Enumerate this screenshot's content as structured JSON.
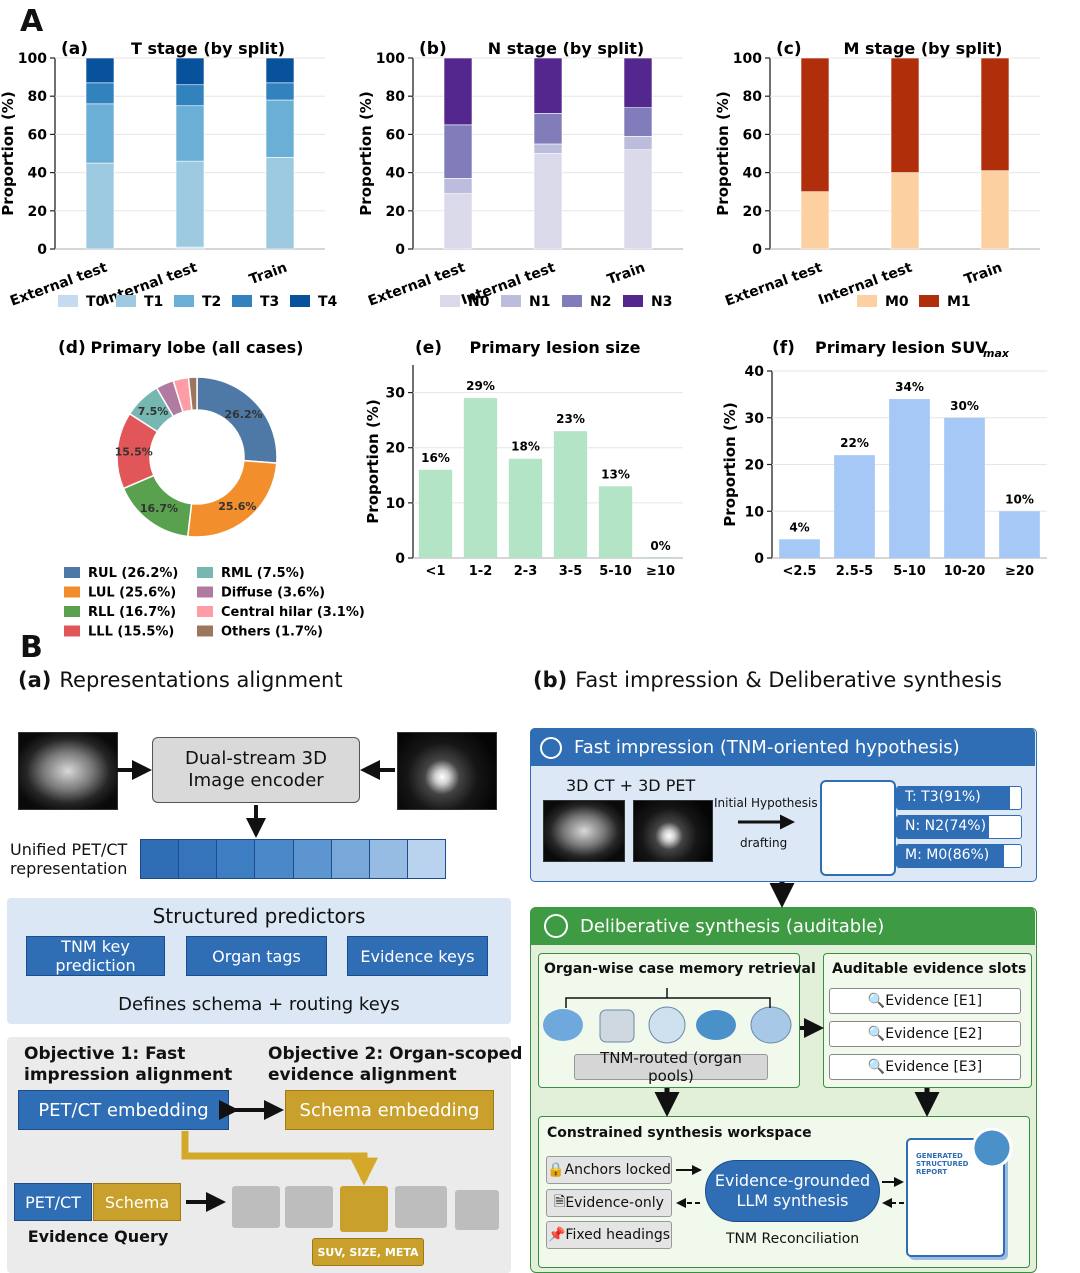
{
  "panel_A_letter": "A",
  "panel_B_letter": "B",
  "legend_A": {
    "t": [
      "T0",
      "T1",
      "T2",
      "T3",
      "T4"
    ],
    "n": [
      "N0",
      "N1",
      "N2",
      "N3"
    ],
    "m": [
      "M0",
      "M1"
    ]
  },
  "colors": {
    "t": [
      "#c6dbef",
      "#9ecae1",
      "#6baed6",
      "#3182bd",
      "#08519c"
    ],
    "n": [
      "#dadaeb",
      "#bcbddc",
      "#807dba",
      "#54278f"
    ],
    "m": [
      "#fdd0a2",
      "#b02f0a"
    ],
    "lobe": [
      "#4e79a7",
      "#f28e2b",
      "#59a14f",
      "#e15759",
      "#76b7b2",
      "#b07aa1",
      "#ff9da7",
      "#9c755f"
    ],
    "size_bar": "#b4e4c6",
    "suv_bar": "#a6c8f7",
    "blue": "#2f6db5",
    "gold": "#c9a02b"
  },
  "chart_data": [
    {
      "id": "a",
      "type": "bar",
      "stacked": true,
      "panel_label": "(a)",
      "title": "T stage (by split)",
      "ylabel": "Proportion (%)",
      "ylim": [
        0,
        100
      ],
      "yticks": [
        "0",
        "20",
        "40",
        "60",
        "80",
        "100"
      ],
      "categories": [
        "External test",
        "Internal test",
        "Train"
      ],
      "series": [
        {
          "name": "T0",
          "values": [
            0,
            1,
            0
          ]
        },
        {
          "name": "T1",
          "values": [
            45,
            45,
            48
          ]
        },
        {
          "name": "T2",
          "values": [
            31,
            29,
            30
          ]
        },
        {
          "name": "T3",
          "values": [
            11,
            11,
            9
          ]
        },
        {
          "name": "T4",
          "values": [
            13,
            14,
            13
          ]
        }
      ]
    },
    {
      "id": "b",
      "type": "bar",
      "stacked": true,
      "panel_label": "(b)",
      "title": "N stage (by split)",
      "ylabel": "Proportion (%)",
      "ylim": [
        0,
        100
      ],
      "yticks": [
        "0",
        "20",
        "40",
        "60",
        "80",
        "100"
      ],
      "categories": [
        "External test",
        "Internal test",
        "Train"
      ],
      "series": [
        {
          "name": "N0",
          "values": [
            29,
            50,
            52
          ]
        },
        {
          "name": "N1",
          "values": [
            8,
            5,
            7
          ]
        },
        {
          "name": "N2",
          "values": [
            28,
            16,
            15
          ]
        },
        {
          "name": "N3",
          "values": [
            35,
            29,
            26
          ]
        }
      ]
    },
    {
      "id": "c",
      "type": "bar",
      "stacked": true,
      "panel_label": "(c)",
      "title": "M stage (by split)",
      "ylabel": "Proportion (%)",
      "ylim": [
        0,
        100
      ],
      "yticks": [
        "0",
        "20",
        "40",
        "60",
        "80",
        "100"
      ],
      "categories": [
        "External test",
        "Internal test",
        "Train"
      ],
      "series": [
        {
          "name": "M0",
          "values": [
            30,
            40,
            41
          ]
        },
        {
          "name": "M1",
          "values": [
            70,
            60,
            59
          ]
        }
      ]
    },
    {
      "id": "d",
      "type": "pie",
      "donut": true,
      "panel_label": "(d)",
      "title": "Primary lobe (all cases)",
      "categories": [
        "RUL",
        "LUL",
        "RLL",
        "LLL",
        "RML",
        "Diffuse",
        "Central hilar",
        "Others"
      ],
      "values": [
        26.2,
        25.6,
        16.7,
        15.5,
        7.5,
        3.6,
        3.1,
        1.7
      ],
      "labels": [
        "26.2%",
        "25.6%",
        "16.7%",
        "15.5%",
        "7.5%",
        "",
        "",
        ""
      ],
      "legend": [
        "RUL (26.2%)",
        "LUL (25.6%)",
        "RLL (16.7%)",
        "LLL (15.5%)",
        "RML (7.5%)",
        "Diffuse (3.6%)",
        "Central hilar (3.1%)",
        "Others (1.7%)"
      ]
    },
    {
      "id": "e",
      "type": "bar",
      "panel_label": "(e)",
      "title": "Primary lesion size",
      "ylabel": "Proportion (%)",
      "ylim": [
        0,
        35
      ],
      "yticks": [
        "0",
        "10",
        "20",
        "30"
      ],
      "categories": [
        "<1",
        "1-2",
        "2-3",
        "3-5",
        "5-10",
        "≥10"
      ],
      "values": [
        16,
        29,
        18,
        23,
        13,
        0
      ],
      "labels": [
        "16%",
        "29%",
        "18%",
        "23%",
        "13%",
        "0%"
      ]
    },
    {
      "id": "f",
      "type": "bar",
      "panel_label": "(f)",
      "title": "Primary lesion SUV",
      "title_sub": "max",
      "ylabel": "Proportion (%)",
      "ylim": [
        0,
        40
      ],
      "yticks": [
        "0",
        "10",
        "20",
        "30",
        "40"
      ],
      "categories": [
        "<2.5",
        "2.5-5",
        "5-10",
        "10-20",
        "≥20"
      ],
      "values": [
        4,
        22,
        34,
        30,
        10
      ],
      "labels": [
        "4%",
        "22%",
        "34%",
        "30%",
        "10%"
      ]
    }
  ],
  "part_b": {
    "a_label": "(a)",
    "a_title": "Representations alignment",
    "b_label": "(b)",
    "b_title": "Fast impression & Deliberative synthesis",
    "encoder_line1": "Dual-stream 3D",
    "encoder_line2": "Image encoder",
    "unified_line1": "Unified PET/CT",
    "unified_line2": "representation",
    "structured_title": "Structured predictors",
    "tnm_key_l1": "TNM key",
    "tnm_key_l2": "prediction",
    "organ_tags": "Organ tags",
    "evidence_keys": "Evidence keys",
    "defines": "Defines schema + routing keys",
    "obj1_l1": "Objective 1: Fast",
    "obj1_l2": "impression alignment",
    "obj2_l1": "Objective 2: Organ-scoped",
    "obj2_l2": "evidence alignment",
    "petct_embedding": "PET/CT embedding",
    "schema_embedding": "Schema embedding",
    "petct": "PET/CT",
    "schema": "Schema",
    "evidence_query": "Evidence Query",
    "suv_meta": "SUV, SIZE, META",
    "fast_title": "Fast impression (TNM-oriented hypothesis)",
    "ct_pet": "3D CT + 3D PET",
    "initial_hypothesis": "Initial Hypothesis",
    "drafting": "drafting",
    "t_result": "T: T3(91%)",
    "n_result": "N: N2(74%)",
    "m_result": "M: M0(86%)",
    "t_conf": 0.91,
    "n_conf": 0.74,
    "m_conf": 0.86,
    "delib_title": "Deliberative synthesis (auditable)",
    "organ_memory": "Organ-wise case memory retrieval",
    "tnm_routed": "TNM-routed (organ pools)",
    "auditable_slots": "Auditable evidence slots",
    "evidence_e1": "Evidence [E1]",
    "evidence_e2": "Evidence [E2]",
    "evidence_e3": "Evidence [E3]",
    "workspace_title": "Constrained synthesis workspace",
    "anchors_locked": "Anchors locked",
    "evidence_only": "Evidence-only",
    "fixed_headings": "Fixed headings",
    "llm_l1": "Evidence-grounded",
    "llm_l2": "LLM synthesis",
    "tnm_reconciliation": "TNM Reconciliation",
    "report_l1": "GENERATED",
    "report_l2": "STRUCTURED",
    "report_l3": "REPORT"
  }
}
